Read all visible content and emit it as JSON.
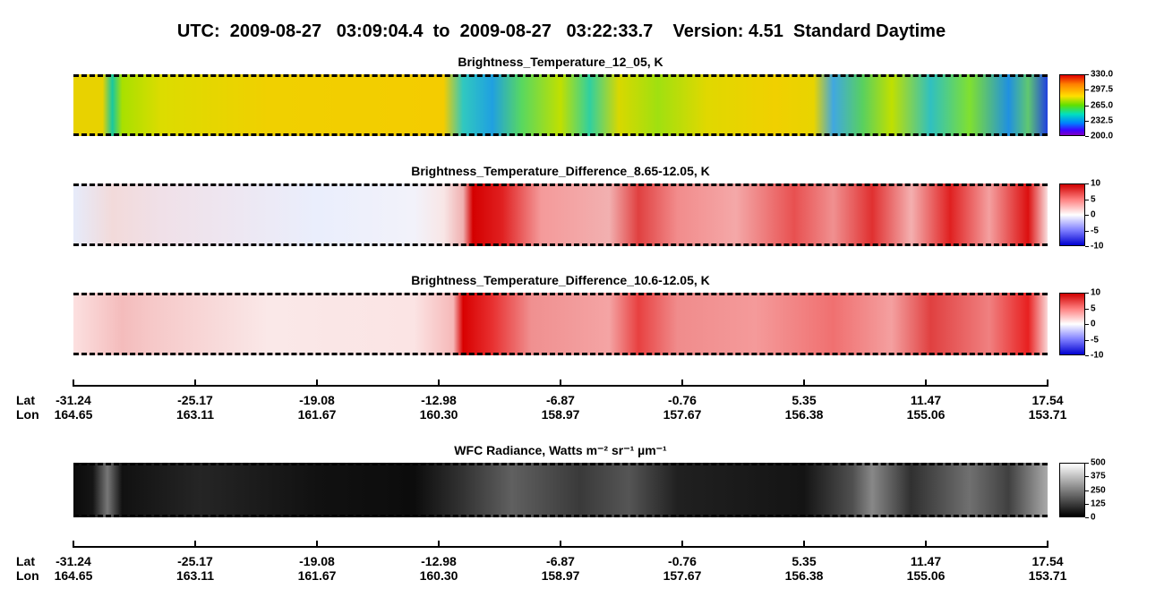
{
  "title": "UTC:  2009-08-27   03:09:04.4  to  2009-08-27   03:22:33.7    Version: 4.51  Standard Daytime",
  "panels": [
    {
      "title": "Brightness_Temperature_12_05, K",
      "colorbar": {
        "range": [
          200,
          330
        ],
        "ticks": [
          {
            "value": 330,
            "label": "330.0"
          },
          {
            "value": 297.5,
            "label": "297.5"
          },
          {
            "value": 265,
            "label": "265.0"
          },
          {
            "value": 232.5,
            "label": "232.5"
          },
          {
            "value": 200,
            "label": "200.0"
          }
        ]
      }
    },
    {
      "title": "Brightness_Temperature_Difference_8.65-12.05, K",
      "colorbar": {
        "range": [
          -10,
          10
        ],
        "ticks": [
          10,
          5,
          0,
          -5,
          -10
        ]
      }
    },
    {
      "title": "Brightness_Temperature_Difference_10.6-12.05, K",
      "colorbar": {
        "range": [
          -10,
          10
        ],
        "ticks": [
          10,
          5,
          0,
          -5,
          -10
        ]
      }
    },
    {
      "title": "WFC Radiance, Watts m⁻² sr⁻¹ µm⁻¹",
      "colorbar": {
        "range": [
          0,
          500
        ],
        "ticks": [
          500,
          375,
          250,
          125,
          0
        ]
      }
    }
  ],
  "axes": [
    {
      "lat_label": "Lat",
      "lon_label": "Lon",
      "lat": [
        "-31.24",
        "-25.17",
        "-19.08",
        "-12.98",
        "-6.87",
        "-0.76",
        "5.35",
        "11.47",
        "17.54"
      ],
      "lon": [
        "164.65",
        "163.11",
        "161.67",
        "160.30",
        "158.97",
        "157.67",
        "156.38",
        "155.06",
        "153.71"
      ]
    },
    {
      "lat_label": "Lat",
      "lon_label": "Lon",
      "lat": [
        "-31.24",
        "-25.17",
        "-19.08",
        "-12.98",
        "-6.87",
        "-0.76",
        "5.35",
        "11.47",
        "17.54"
      ],
      "lon": [
        "164.65",
        "163.11",
        "161.67",
        "160.30",
        "158.97",
        "157.67",
        "156.38",
        "155.06",
        "153.71"
      ]
    }
  ]
}
